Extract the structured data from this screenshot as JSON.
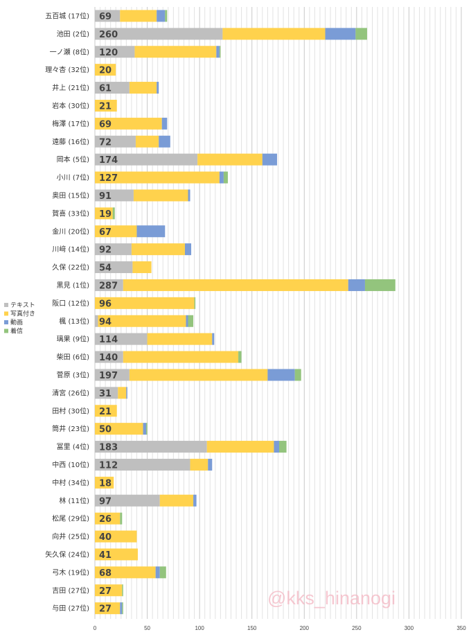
{
  "chart_data": {
    "type": "bar",
    "orientation": "horizontal",
    "stacked": true,
    "categories": [
      "五百城 (17位)",
      "池田 (2位)",
      "一ノ瀬 (8位)",
      "理々杏 (32位)",
      "井上 (21位)",
      "岩本 (30位)",
      "梅澤 (17位)",
      "遠藤 (16位)",
      "岡本 (5位)",
      "小川 (7位)",
      "奥田 (15位)",
      "賀喜 (33位)",
      "金川 (20位)",
      "川﨑 (14位)",
      "久保 (22位)",
      "黒見 (1位)",
      "阪口 (12位)",
      "楓 (13位)",
      "璃果 (9位)",
      "柴田 (6位)",
      "菅原 (3位)",
      "清宮 (26位)",
      "田村 (30位)",
      "筒井 (23位)",
      "冨里 (4位)",
      "中西 (10位)",
      "中村 (34位)",
      "林 (11位)",
      "松尾 (29位)",
      "向井 (25位)",
      "矢久保 (24位)",
      "弓木 (19位)",
      "吉田 (27位)",
      "与田 (27位)"
    ],
    "series": [
      {
        "name": "テキスト",
        "color": "#bfbfbf",
        "values": [
          24,
          122,
          38,
          0,
          33,
          0,
          0,
          39,
          98,
          0,
          37,
          0,
          0,
          35,
          36,
          27,
          0,
          3,
          50,
          27,
          33,
          22,
          0,
          0,
          107,
          91,
          0,
          62,
          0,
          0,
          0,
          0,
          0,
          0
        ]
      },
      {
        "name": "写真付き",
        "color": "#ffd24d",
        "values": [
          35,
          98,
          78,
          20,
          26,
          21,
          64,
          22,
          62,
          119,
          52,
          17,
          40,
          51,
          18,
          215,
          95,
          84,
          62,
          110,
          132,
          8,
          21,
          46,
          64,
          17,
          18,
          32,
          24,
          40,
          41,
          58,
          26,
          24
        ]
      },
      {
        "name": "動画",
        "color": "#7a9cd6",
        "values": [
          8,
          29,
          3,
          0,
          2,
          0,
          5,
          11,
          14,
          4,
          2,
          0,
          27,
          6,
          0,
          16,
          0,
          2,
          2,
          0,
          26,
          1,
          0,
          3,
          5,
          4,
          0,
          3,
          0,
          0,
          0,
          4,
          0,
          2
        ]
      },
      {
        "name": "着信",
        "color": "#93c47d",
        "values": [
          2,
          11,
          1,
          0,
          0,
          0,
          0,
          0,
          0,
          4,
          0,
          2,
          0,
          0,
          0,
          29,
          1,
          5,
          0,
          3,
          6,
          0,
          0,
          1,
          7,
          0,
          0,
          0,
          2,
          0,
          0,
          6,
          1,
          1
        ]
      }
    ],
    "totals": [
      69,
      260,
      120,
      20,
      61,
      21,
      69,
      72,
      174,
      127,
      91,
      19,
      67,
      92,
      54,
      287,
      96,
      94,
      114,
      140,
      197,
      31,
      21,
      50,
      183,
      112,
      18,
      97,
      26,
      40,
      41,
      68,
      27,
      27
    ],
    "xlim": [
      0,
      350
    ],
    "x_ticks": [
      0,
      50,
      100,
      150,
      200,
      250,
      300,
      350
    ],
    "grid": "vertical",
    "legend_position": "left"
  },
  "watermark": "@kks_hinanogi"
}
